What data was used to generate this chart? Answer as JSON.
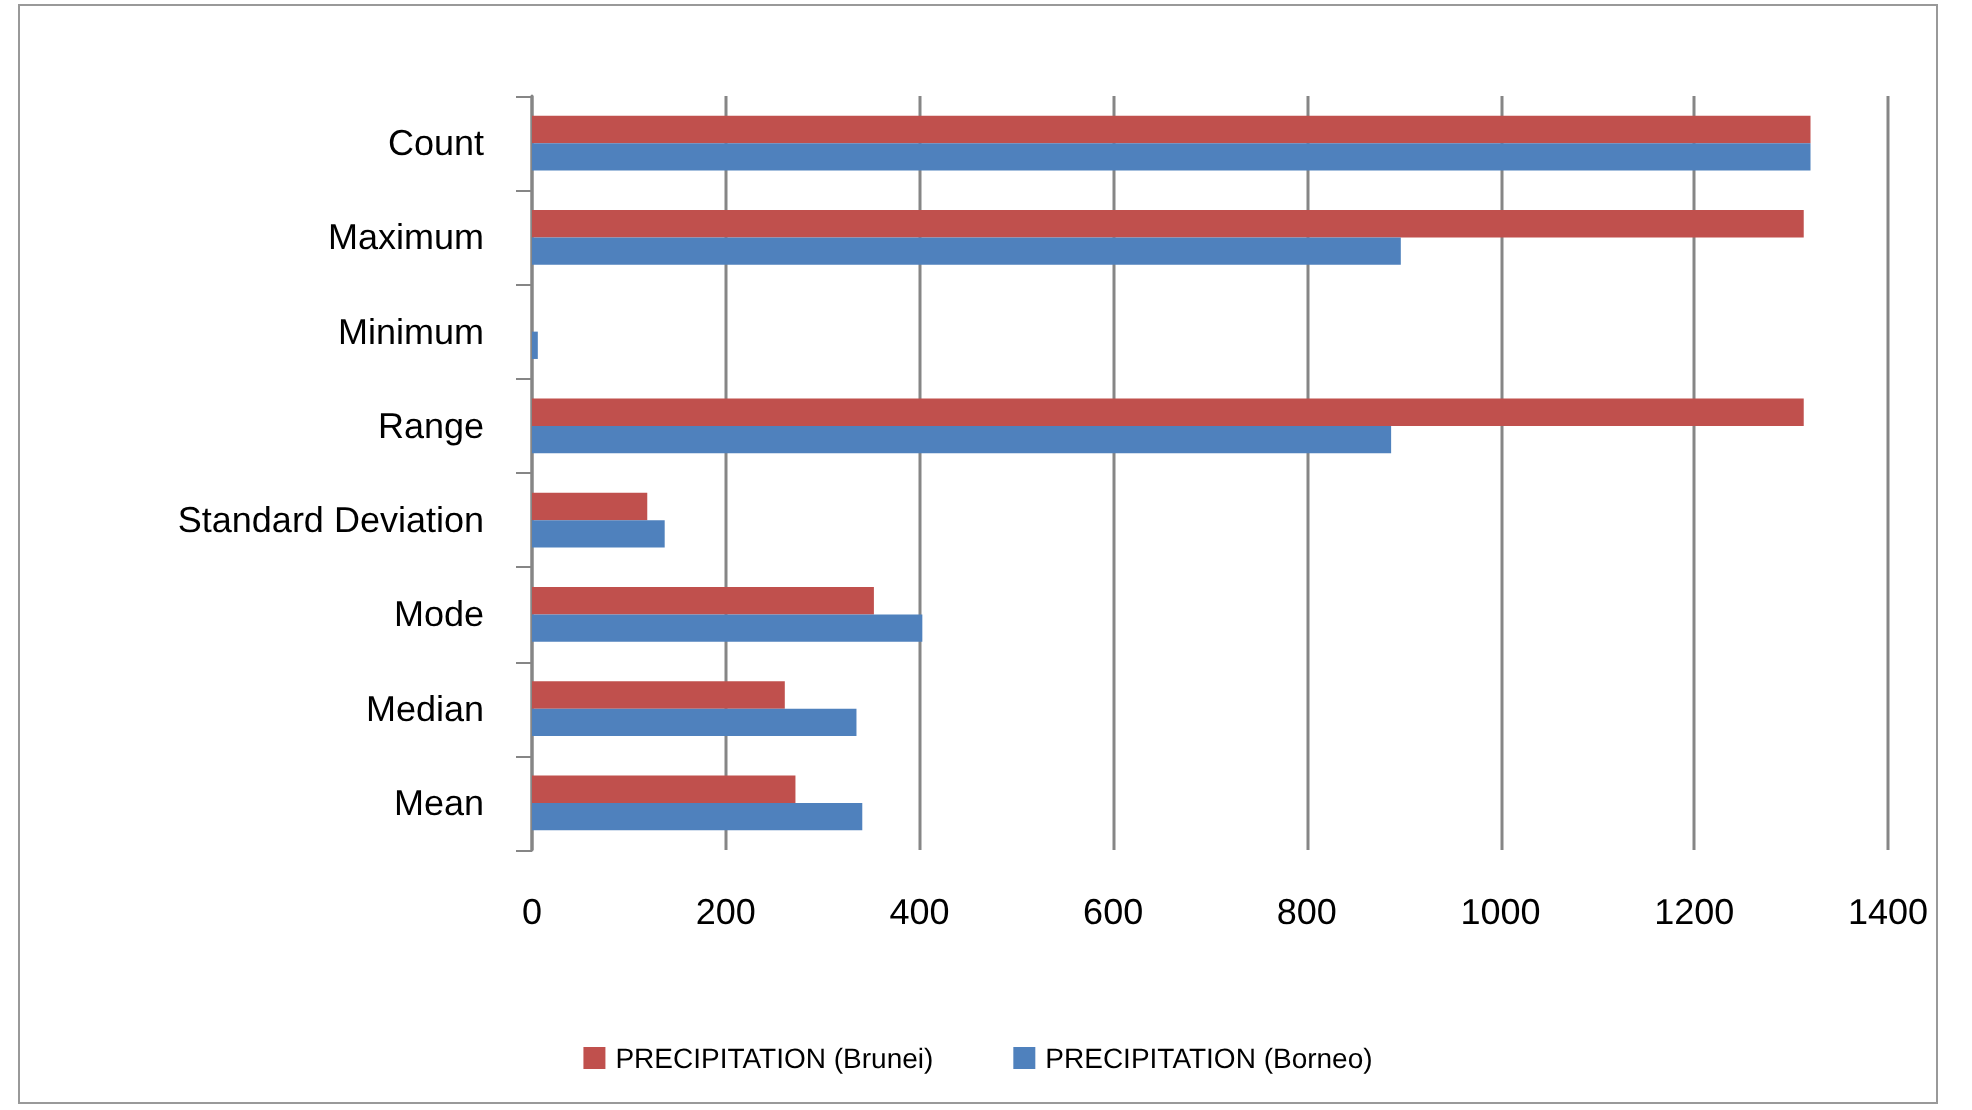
{
  "chart_data": {
    "type": "bar",
    "orientation": "horizontal",
    "categories": [
      "Count",
      "Maximum",
      "Minimum",
      "Range",
      "Standard Deviation",
      "Mode",
      "Median",
      "Mean"
    ],
    "series": [
      {
        "name": "PRECIPITATION (Brunei)",
        "color": "#c0504d",
        "values": [
          1320,
          1313,
          0,
          1313,
          119,
          353,
          261,
          272
        ]
      },
      {
        "name": "PRECIPITATION (Borneo)",
        "color": "#4f81bd",
        "values": [
          1320,
          897,
          6,
          887,
          137,
          403,
          335,
          341
        ]
      }
    ],
    "xlim": [
      0,
      1400
    ],
    "xticks": [
      0,
      200,
      400,
      600,
      800,
      1000,
      1200,
      1400
    ],
    "grid": "x",
    "legend": "bottom"
  }
}
